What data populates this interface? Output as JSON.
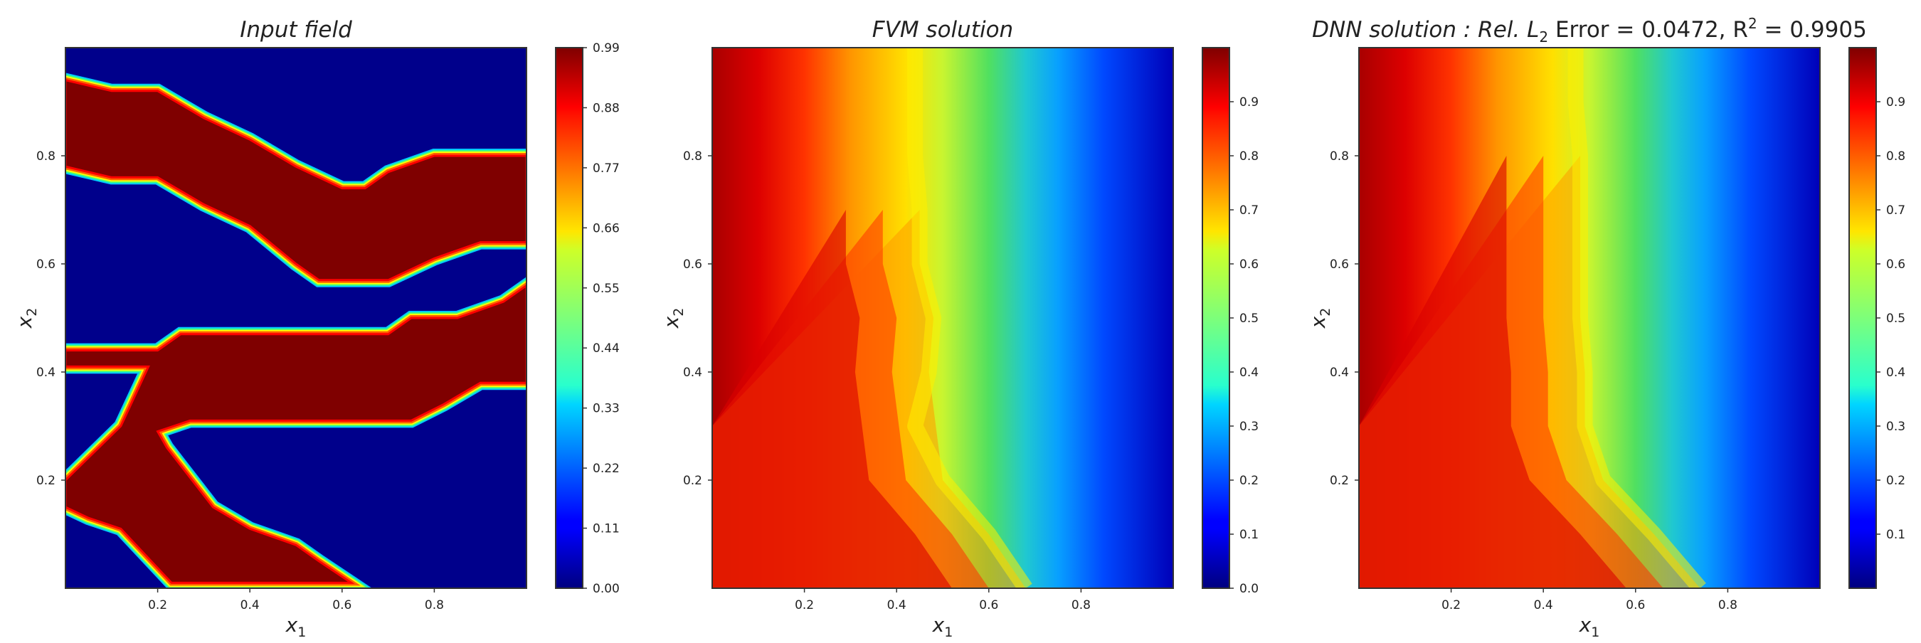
{
  "colormap": "jet",
  "panels": [
    {
      "id": "input",
      "title": "Input field",
      "xlabel_main": "x",
      "xlabel_sub": "1",
      "ylabel_main": "x",
      "ylabel_sub": "2",
      "x_ticks": [
        "0.2",
        "0.4",
        "0.6",
        "0.8"
      ],
      "y_ticks": [
        "0.2",
        "0.4",
        "0.6",
        "0.8"
      ],
      "colorbar_ticks": [
        "0.99",
        "0.88",
        "0.77",
        "0.66",
        "0.55",
        "0.44",
        "0.33",
        "0.22",
        "0.11",
        "0.00"
      ]
    },
    {
      "id": "fvm",
      "title": "FVM solution",
      "xlabel_main": "x",
      "xlabel_sub": "1",
      "ylabel_main": "x",
      "ylabel_sub": "2",
      "x_ticks": [
        "0.2",
        "0.4",
        "0.6",
        "0.8"
      ],
      "y_ticks": [
        "0.2",
        "0.4",
        "0.6",
        "0.8"
      ],
      "colorbar_ticks": [
        "0.9",
        "0.8",
        "0.7",
        "0.6",
        "0.5",
        "0.4",
        "0.3",
        "0.2",
        "0.1",
        "0.0"
      ]
    },
    {
      "id": "dnn",
      "title_parts": {
        "prefix": "DNN solution :  Rel. L",
        "sub": "2",
        "middle": " Error = 0.0472, R",
        "sup": "2",
        "suffix": " = 0.9905"
      },
      "xlabel_main": "x",
      "xlabel_sub": "1",
      "ylabel_main": "x",
      "ylabel_sub": "2",
      "x_ticks": [
        "0.2",
        "0.4",
        "0.6",
        "0.8"
      ],
      "y_ticks": [
        "0.2",
        "0.4",
        "0.6",
        "0.8"
      ],
      "colorbar_ticks": [
        "0.9",
        "0.8",
        "0.7",
        "0.6",
        "0.5",
        "0.4",
        "0.3",
        "0.2",
        "0.1"
      ]
    }
  ],
  "chart_data": [
    {
      "type": "heatmap",
      "title": "Input field",
      "xlabel": "x1",
      "ylabel": "x2",
      "xlim": [
        0,
        1
      ],
      "ylim": [
        0,
        1
      ],
      "colorbar_range": [
        0.0,
        0.99
      ],
      "binary_values": [
        0,
        1
      ],
      "high_value_channels": [
        {
          "upper_boundary": [
            [
              0.0,
              0.94
            ],
            [
              0.1,
              0.92
            ],
            [
              0.2,
              0.92
            ],
            [
              0.3,
              0.87
            ],
            [
              0.4,
              0.83
            ],
            [
              0.5,
              0.78
            ],
            [
              0.6,
              0.74
            ],
            [
              0.65,
              0.74
            ],
            [
              0.7,
              0.77
            ],
            [
              0.8,
              0.8
            ],
            [
              1.0,
              0.8
            ]
          ],
          "lower_boundary": [
            [
              0.0,
              0.78
            ],
            [
              0.1,
              0.76
            ],
            [
              0.2,
              0.76
            ],
            [
              0.3,
              0.71
            ],
            [
              0.4,
              0.67
            ],
            [
              0.5,
              0.6
            ],
            [
              0.55,
              0.57
            ],
            [
              0.7,
              0.57
            ],
            [
              0.8,
              0.61
            ],
            [
              0.9,
              0.64
            ],
            [
              1.0,
              0.64
            ]
          ]
        },
        {
          "upper_boundary": [
            [
              0.0,
              0.44
            ],
            [
              0.2,
              0.44
            ],
            [
              0.25,
              0.47
            ],
            [
              0.7,
              0.47
            ],
            [
              0.75,
              0.5
            ],
            [
              0.85,
              0.5
            ],
            [
              0.95,
              0.53
            ],
            [
              1.0,
              0.56
            ]
          ],
          "lower_boundary": [
            [
              0.0,
              0.41
            ],
            [
              0.18,
              0.41
            ],
            [
              0.12,
              0.3
            ],
            [
              0.0,
              0.2
            ],
            [
              0.0,
              0.15
            ],
            [
              0.05,
              0.13
            ],
            [
              0.12,
              0.11
            ],
            [
              0.23,
              0.01
            ],
            [
              0.62,
              0.01
            ],
            [
              0.55,
              0.05
            ],
            [
              0.5,
              0.08
            ],
            [
              0.4,
              0.11
            ],
            [
              0.32,
              0.15
            ],
            [
              0.22,
              0.26
            ],
            [
              0.2,
              0.29
            ],
            [
              0.27,
              0.31
            ],
            [
              0.75,
              0.31
            ],
            [
              0.82,
              0.34
            ],
            [
              0.9,
              0.38
            ],
            [
              1.0,
              0.38
            ]
          ]
        }
      ]
    },
    {
      "type": "heatmap",
      "title": "FVM solution",
      "xlabel": "x1",
      "ylabel": "x2",
      "xlim": [
        0,
        1
      ],
      "ylim": [
        0,
        1
      ],
      "colorbar_range": [
        0.0,
        1.0
      ],
      "description_values": {
        "left_edge": 1.0,
        "right_edge": 0.0
      },
      "yellow_front_x_at_y": [
        [
          0.0,
          0.68
        ],
        [
          0.1,
          0.6
        ],
        [
          0.2,
          0.5
        ],
        [
          0.3,
          0.44
        ],
        [
          0.4,
          0.47
        ],
        [
          0.5,
          0.48
        ],
        [
          0.6,
          0.45
        ],
        [
          0.7,
          0.45
        ],
        [
          0.8,
          0.44
        ],
        [
          0.9,
          0.44
        ],
        [
          1.0,
          0.44
        ]
      ]
    },
    {
      "type": "heatmap",
      "title": "DNN solution : Rel. L2 Error = 0.0472, R2 = 0.9905",
      "xlabel": "x1",
      "ylabel": "x2",
      "xlim": [
        0,
        1
      ],
      "ylim": [
        0,
        1
      ],
      "colorbar_range": [
        0.0,
        1.0
      ],
      "metrics": {
        "rel_l2_error": 0.0472,
        "r2": 0.9905
      },
      "description_values": {
        "left_edge": 1.0,
        "right_edge": 0.0
      },
      "yellow_front_x_at_y": [
        [
          0.0,
          0.74
        ],
        [
          0.1,
          0.64
        ],
        [
          0.2,
          0.53
        ],
        [
          0.3,
          0.49
        ],
        [
          0.4,
          0.49
        ],
        [
          0.5,
          0.48
        ],
        [
          0.6,
          0.48
        ],
        [
          0.7,
          0.48
        ],
        [
          0.8,
          0.48
        ],
        [
          0.9,
          0.47
        ],
        [
          1.0,
          0.47
        ]
      ]
    }
  ]
}
